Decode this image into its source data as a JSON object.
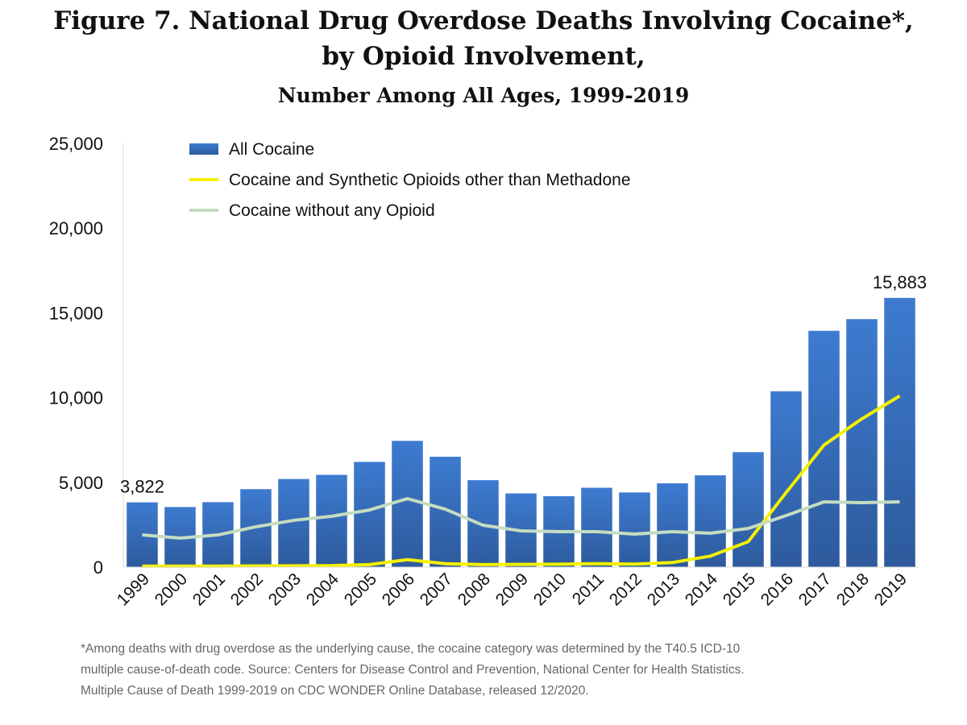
{
  "title": {
    "line1": "Figure 7. National Drug Overdose Deaths Involving Cocaine*,",
    "line2": "by Opioid Involvement,",
    "line3": "Number Among All Ages, 1999-2019"
  },
  "footnote": [
    "*Among deaths with drug overdose as the underlying cause, the cocaine category was determined by the T40.5 ICD-10",
    "multiple cause-of-death code.  Source: Centers for Disease Control and Prevention, National Center for Health Statistics.",
    "Multiple Cause of Death 1999-2019 on CDC WONDER Online Database, released 12/2020."
  ],
  "chart_data": {
    "type": "bar",
    "categories": [
      "1999",
      "2000",
      "2001",
      "2002",
      "2003",
      "2004",
      "2005",
      "2006",
      "2007",
      "2008",
      "2009",
      "2010",
      "2011",
      "2012",
      "2013",
      "2014",
      "2015",
      "2016",
      "2017",
      "2018",
      "2019"
    ],
    "ylim": [
      0,
      25000
    ],
    "yticks": [
      "0",
      "5,000",
      "10,000",
      "15,000",
      "20,000",
      "25,000"
    ],
    "ytick_values": [
      0,
      5000,
      10000,
      15000,
      20000,
      25000
    ],
    "grid": false,
    "legend": "top-left",
    "series": [
      {
        "name": "All Cocaine",
        "kind": "bar",
        "color": "#3a72c0",
        "values": [
          3822,
          3544,
          3833,
          4599,
          5199,
          5443,
          6208,
          7448,
          6512,
          5129,
          4350,
          4183,
          4681,
          4404,
          4944,
          5415,
          6784,
          10375,
          13942,
          14630,
          15883
        ]
      },
      {
        "name": "Cocaine and Synthetic Opioids other than Methadone",
        "kind": "line",
        "color": "#f4f000",
        "values": [
          60,
          60,
          60,
          70,
          80,
          90,
          150,
          440,
          200,
          150,
          160,
          170,
          200,
          180,
          270,
          650,
          1500,
          4400,
          7200,
          8750,
          10100
        ]
      },
      {
        "name": "Cocaine without any Opioid",
        "kind": "line",
        "color": "#c5dcc0",
        "values": [
          1900,
          1710,
          1900,
          2380,
          2760,
          3000,
          3370,
          4040,
          3420,
          2470,
          2140,
          2090,
          2090,
          1950,
          2090,
          2000,
          2280,
          3040,
          3850,
          3800,
          3850
        ]
      }
    ],
    "data_labels": [
      {
        "category": "1999",
        "text": "3,822"
      },
      {
        "category": "2019",
        "text": "15,883"
      }
    ]
  }
}
